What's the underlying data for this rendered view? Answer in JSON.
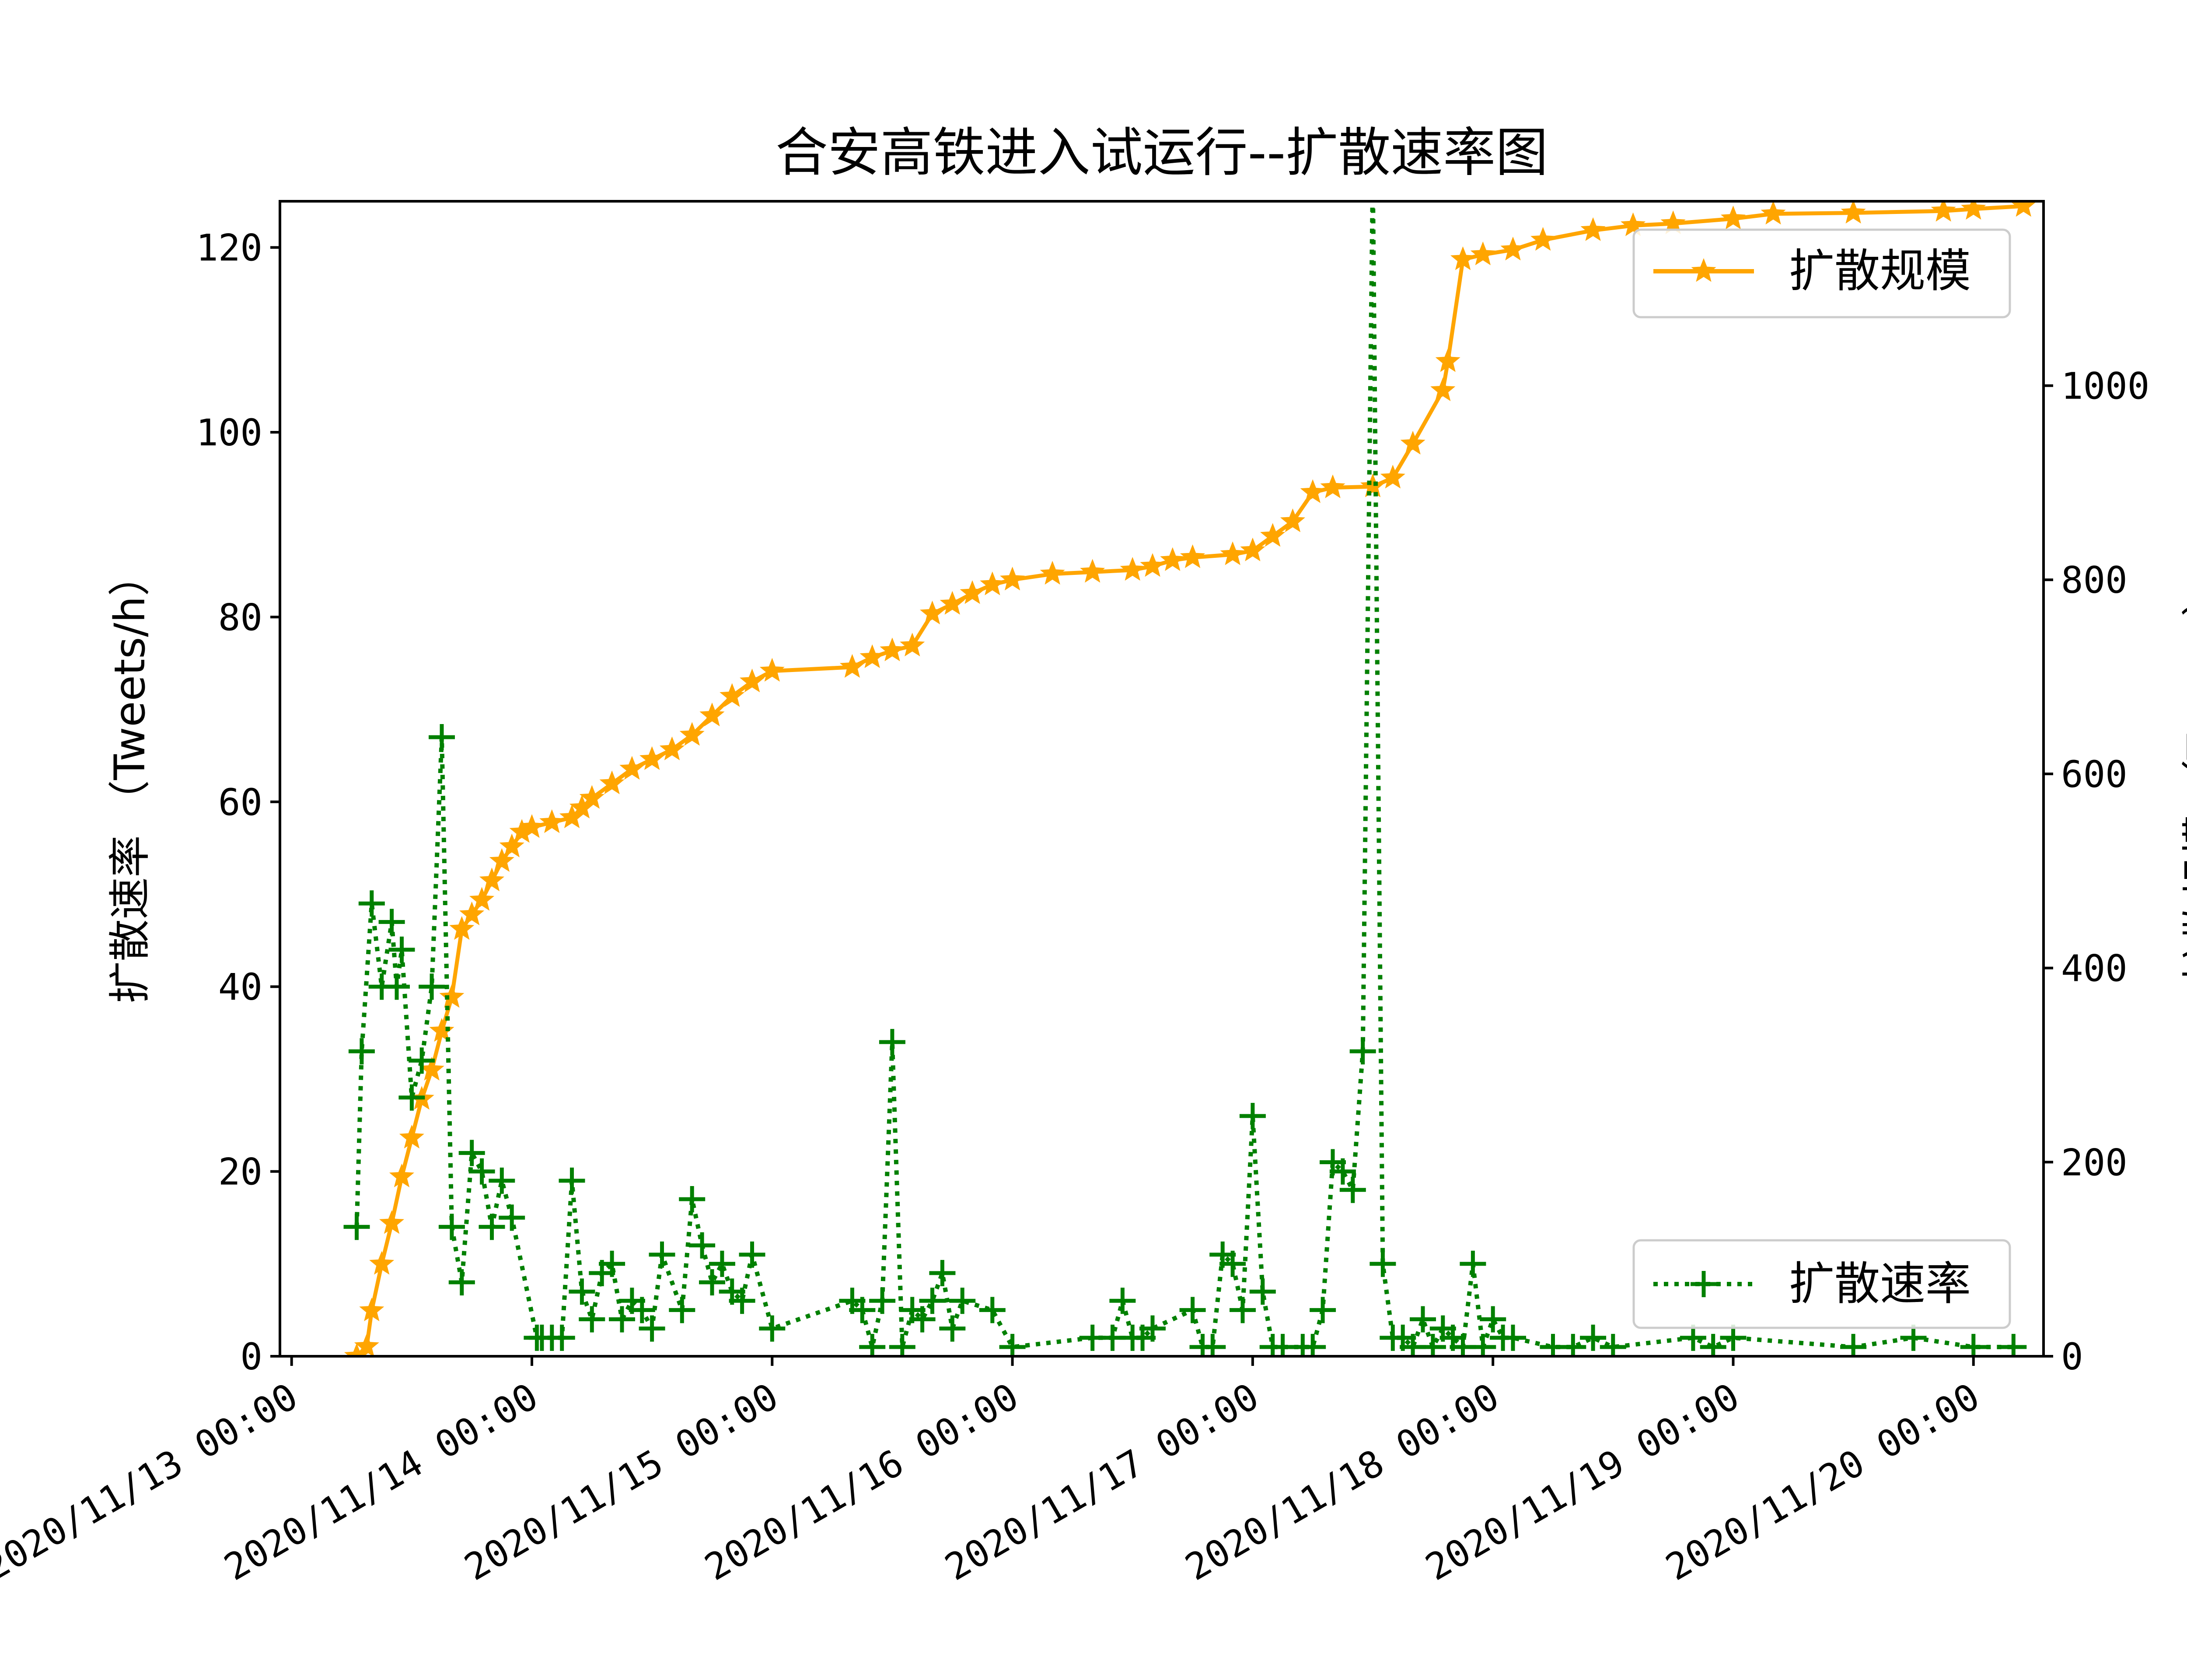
{
  "chart_data": {
    "type": "line",
    "title": "合安高铁进入试运行--扩散速率图",
    "ylabel_left": "扩散速率 （Tweets/h）",
    "ylabel_right": "扩散规模 （Tweets）",
    "x_range": [
      "2020/11/12 22:50",
      "2020/11/20 07:00"
    ],
    "ylim_left": [
      0,
      125
    ],
    "ylim_right": [
      0,
      1190
    ],
    "x_ticks": [
      "2020/11/13 00:00",
      "2020/11/14 00:00",
      "2020/11/15 00:00",
      "2020/11/16 00:00",
      "2020/11/17 00:00",
      "2020/11/18 00:00",
      "2020/11/19 00:00",
      "2020/11/20 00:00"
    ],
    "y_ticks_left": [
      0,
      20,
      40,
      60,
      80,
      100,
      120
    ],
    "y_ticks_right": [
      0,
      200,
      400,
      600,
      800,
      1000
    ],
    "legend_placement": {
      "扩散规模": "upper-right",
      "扩散速率": "lower-right"
    },
    "grid": false,
    "series": [
      {
        "name": "扩散规模",
        "axis": "right",
        "color": "#ffa500",
        "style": "solid",
        "marker": "star",
        "points": [
          [
            "2020/11/13 06:30",
            0
          ],
          [
            "2020/11/13 07:30",
            10
          ],
          [
            "2020/11/13 08:00",
            47
          ],
          [
            "2020/11/13 09:00",
            95
          ],
          [
            "2020/11/13 10:00",
            137
          ],
          [
            "2020/11/13 11:00",
            185
          ],
          [
            "2020/11/13 12:00",
            225
          ],
          [
            "2020/11/13 13:00",
            265
          ],
          [
            "2020/11/13 14:00",
            295
          ],
          [
            "2020/11/13 15:00",
            335
          ],
          [
            "2020/11/13 16:00",
            370
          ],
          [
            "2020/11/13 17:00",
            440
          ],
          [
            "2020/11/13 18:00",
            455
          ],
          [
            "2020/11/13 19:00",
            470
          ],
          [
            "2020/11/13 20:00",
            490
          ],
          [
            "2020/11/13 21:00",
            510
          ],
          [
            "2020/11/13 22:00",
            525
          ],
          [
            "2020/11/13 23:00",
            540
          ],
          [
            "2020/11/14 00:00",
            545
          ],
          [
            "2020/11/14 02:00",
            550
          ],
          [
            "2020/11/14 04:00",
            555
          ],
          [
            "2020/11/14 05:00",
            565
          ],
          [
            "2020/11/14 06:00",
            575
          ],
          [
            "2020/11/14 08:00",
            590
          ],
          [
            "2020/11/14 10:00",
            605
          ],
          [
            "2020/11/14 12:00",
            615
          ],
          [
            "2020/11/14 14:00",
            625
          ],
          [
            "2020/11/14 16:00",
            640
          ],
          [
            "2020/11/14 18:00",
            660
          ],
          [
            "2020/11/14 20:00",
            680
          ],
          [
            "2020/11/14 22:00",
            695
          ],
          [
            "2020/11/15 00:00",
            706
          ],
          [
            "2020/11/15 08:00",
            710
          ],
          [
            "2020/11/15 10:00",
            720
          ],
          [
            "2020/11/15 12:00",
            727
          ],
          [
            "2020/11/15 14:00",
            732
          ],
          [
            "2020/11/15 16:00",
            765
          ],
          [
            "2020/11/15 18:00",
            775
          ],
          [
            "2020/11/15 20:00",
            786
          ],
          [
            "2020/11/15 22:00",
            795
          ],
          [
            "2020/11/16 00:00",
            800
          ],
          [
            "2020/11/16 04:00",
            806
          ],
          [
            "2020/11/16 08:00",
            808
          ],
          [
            "2020/11/16 12:00",
            810
          ],
          [
            "2020/11/16 14:00",
            814
          ],
          [
            "2020/11/16 16:00",
            820
          ],
          [
            "2020/11/16 18:00",
            823
          ],
          [
            "2020/11/16 22:00",
            826
          ],
          [
            "2020/11/17 00:00",
            830
          ],
          [
            "2020/11/17 02:00",
            845
          ],
          [
            "2020/11/17 04:00",
            860
          ],
          [
            "2020/11/17 06:00",
            890
          ],
          [
            "2020/11/17 08:00",
            895
          ],
          [
            "2020/11/17 12:00",
            896
          ],
          [
            "2020/11/17 14:00",
            905
          ],
          [
            "2020/11/17 16:00",
            940
          ],
          [
            "2020/11/17 19:00",
            995
          ],
          [
            "2020/11/17 19:30",
            1025
          ],
          [
            "2020/11/17 21:00",
            1130
          ],
          [
            "2020/11/17 23:00",
            1135
          ],
          [
            "2020/11/18 02:00",
            1140
          ],
          [
            "2020/11/18 05:00",
            1150
          ],
          [
            "2020/11/18 10:00",
            1160
          ],
          [
            "2020/11/18 14:00",
            1165
          ],
          [
            "2020/11/18 18:00",
            1167
          ],
          [
            "2020/11/19 00:00",
            1172
          ],
          [
            "2020/11/19 04:00",
            1177
          ],
          [
            "2020/11/19 12:00",
            1178
          ],
          [
            "2020/11/19 21:00",
            1180
          ],
          [
            "2020/11/20 00:00",
            1182
          ],
          [
            "2020/11/20 05:00",
            1185
          ]
        ]
      },
      {
        "name": "扩散速率",
        "axis": "left",
        "color": "#008000",
        "style": "dotted",
        "marker": "plus",
        "points": [
          [
            "2020/11/13 06:30",
            14
          ],
          [
            "2020/11/13 07:00",
            33
          ],
          [
            "2020/11/13 08:00",
            49
          ],
          [
            "2020/11/13 09:00",
            40
          ],
          [
            "2020/11/13 10:00",
            47
          ],
          [
            "2020/11/13 10:30",
            40
          ],
          [
            "2020/11/13 11:00",
            44
          ],
          [
            "2020/11/13 12:00",
            28
          ],
          [
            "2020/11/13 13:00",
            32
          ],
          [
            "2020/11/13 14:00",
            40
          ],
          [
            "2020/11/13 15:00",
            67
          ],
          [
            "2020/11/13 16:00",
            14
          ],
          [
            "2020/11/13 17:00",
            8
          ],
          [
            "2020/11/13 18:00",
            22
          ],
          [
            "2020/11/13 19:00",
            20
          ],
          [
            "2020/11/13 20:00",
            14
          ],
          [
            "2020/11/13 21:00",
            19
          ],
          [
            "2020/11/13 22:00",
            15
          ],
          [
            "2020/11/14 00:30",
            2
          ],
          [
            "2020/11/14 01:00",
            2
          ],
          [
            "2020/11/14 02:00",
            2
          ],
          [
            "2020/11/14 03:00",
            2
          ],
          [
            "2020/11/14 04:00",
            19
          ],
          [
            "2020/11/14 05:00",
            7
          ],
          [
            "2020/11/14 06:00",
            4
          ],
          [
            "2020/11/14 07:00",
            9
          ],
          [
            "2020/11/14 08:00",
            10
          ],
          [
            "2020/11/14 09:00",
            4
          ],
          [
            "2020/11/14 10:00",
            6
          ],
          [
            "2020/11/14 11:00",
            5
          ],
          [
            "2020/11/14 12:00",
            3
          ],
          [
            "2020/11/14 13:00",
            11
          ],
          [
            "2020/11/14 15:00",
            5
          ],
          [
            "2020/11/14 16:00",
            17
          ],
          [
            "2020/11/14 17:00",
            12
          ],
          [
            "2020/11/14 18:00",
            8
          ],
          [
            "2020/11/14 19:00",
            10
          ],
          [
            "2020/11/14 20:00",
            7
          ],
          [
            "2020/11/14 21:00",
            6
          ],
          [
            "2020/11/14 22:00",
            11
          ],
          [
            "2020/11/15 00:00",
            3
          ],
          [
            "2020/11/15 08:00",
            6
          ],
          [
            "2020/11/15 09:00",
            5
          ],
          [
            "2020/11/15 10:00",
            1
          ],
          [
            "2020/11/15 11:00",
            6
          ],
          [
            "2020/11/15 12:00",
            34
          ],
          [
            "2020/11/15 13:00",
            1
          ],
          [
            "2020/11/15 14:00",
            5
          ],
          [
            "2020/11/15 15:00",
            4
          ],
          [
            "2020/11/15 16:00",
            6
          ],
          [
            "2020/11/15 17:00",
            9
          ],
          [
            "2020/11/15 18:00",
            3
          ],
          [
            "2020/11/15 19:00",
            6
          ],
          [
            "2020/11/15 22:00",
            5
          ],
          [
            "2020/11/16 00:00",
            1
          ],
          [
            "2020/11/16 08:00",
            2
          ],
          [
            "2020/11/16 10:00",
            2
          ],
          [
            "2020/11/16 11:00",
            6
          ],
          [
            "2020/11/16 12:00",
            2
          ],
          [
            "2020/11/16 13:00",
            2
          ],
          [
            "2020/11/16 14:00",
            3
          ],
          [
            "2020/11/16 18:00",
            5
          ],
          [
            "2020/11/16 19:00",
            1
          ],
          [
            "2020/11/16 20:00",
            1
          ],
          [
            "2020/11/16 21:00",
            11
          ],
          [
            "2020/11/16 22:00",
            10
          ],
          [
            "2020/11/16 23:00",
            5
          ],
          [
            "2020/11/17 00:00",
            26
          ],
          [
            "2020/11/17 01:00",
            7
          ],
          [
            "2020/11/17 02:00",
            1
          ],
          [
            "2020/11/17 03:00",
            1
          ],
          [
            "2020/11/17 05:00",
            1
          ],
          [
            "2020/11/17 06:00",
            1
          ],
          [
            "2020/11/17 07:00",
            5
          ],
          [
            "2020/11/17 08:00",
            21
          ],
          [
            "2020/11/17 09:00",
            20
          ],
          [
            "2020/11/17 10:00",
            18
          ],
          [
            "2020/11/17 11:00",
            33
          ],
          [
            "2020/11/17 12:00",
            128
          ],
          [
            "2020/11/17 13:00",
            10
          ],
          [
            "2020/11/17 14:00",
            2
          ],
          [
            "2020/11/17 15:00",
            2
          ],
          [
            "2020/11/17 16:00",
            1
          ],
          [
            "2020/11/17 17:00",
            4
          ],
          [
            "2020/11/17 18:00",
            1
          ],
          [
            "2020/11/17 19:00",
            3
          ],
          [
            "2020/11/17 20:00",
            2
          ],
          [
            "2020/11/17 21:00",
            1
          ],
          [
            "2020/11/17 22:00",
            10
          ],
          [
            "2020/11/17 23:00",
            1
          ],
          [
            "2020/11/18 00:00",
            4
          ],
          [
            "2020/11/18 01:00",
            2
          ],
          [
            "2020/11/18 02:00",
            2
          ],
          [
            "2020/11/18 06:00",
            1
          ],
          [
            "2020/11/18 08:00",
            1
          ],
          [
            "2020/11/18 10:00",
            2
          ],
          [
            "2020/11/18 12:00",
            1
          ],
          [
            "2020/11/18 20:00",
            2
          ],
          [
            "2020/11/18 22:00",
            1
          ],
          [
            "2020/11/19 00:00",
            2
          ],
          [
            "2020/11/19 12:00",
            1
          ],
          [
            "2020/11/19 18:00",
            2
          ],
          [
            "2020/11/20 00:00",
            1
          ],
          [
            "2020/11/20 04:00",
            1
          ]
        ]
      }
    ]
  }
}
